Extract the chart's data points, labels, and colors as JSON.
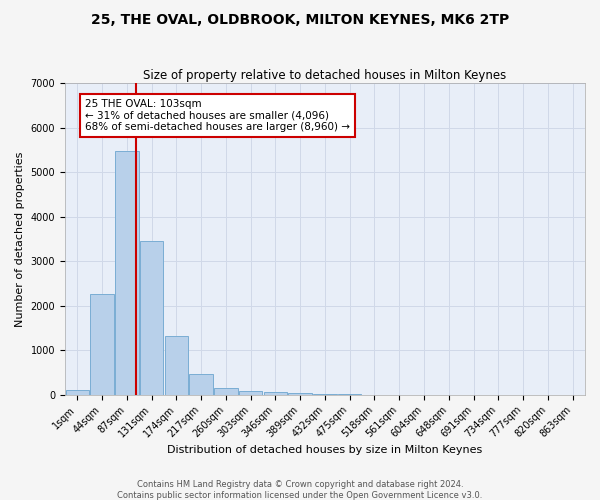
{
  "title1": "25, THE OVAL, OLDBROOK, MILTON KEYNES, MK6 2TP",
  "title2": "Size of property relative to detached houses in Milton Keynes",
  "xlabel": "Distribution of detached houses by size in Milton Keynes",
  "ylabel": "Number of detached properties",
  "bin_labels": [
    "1sqm",
    "44sqm",
    "87sqm",
    "131sqm",
    "174sqm",
    "217sqm",
    "260sqm",
    "303sqm",
    "346sqm",
    "389sqm",
    "432sqm",
    "475sqm",
    "518sqm",
    "561sqm",
    "604sqm",
    "648sqm",
    "691sqm",
    "734sqm",
    "777sqm",
    "820sqm",
    "863sqm"
  ],
  "bar_heights": [
    100,
    2270,
    5480,
    3450,
    1320,
    470,
    160,
    90,
    65,
    40,
    15,
    5,
    2,
    1,
    0,
    0,
    0,
    0,
    0,
    0,
    0
  ],
  "num_bins": 21,
  "bar_color": "#b8d0ea",
  "bar_edge_color": "#7aadd4",
  "property_line_x": 2,
  "property_line_color": "#cc0000",
  "annotation_text": "25 THE OVAL: 103sqm\n← 31% of detached houses are smaller (4,096)\n68% of semi-detached houses are larger (8,960) →",
  "annotation_box_color": "#ffffff",
  "annotation_box_edge_color": "#cc0000",
  "ylim": [
    0,
    7000
  ],
  "yticks": [
    0,
    1000,
    2000,
    3000,
    4000,
    5000,
    6000,
    7000
  ],
  "grid_color": "#d0d8e8",
  "bg_color": "#e8eef8",
  "fig_color": "#f5f5f5",
  "footer1": "Contains HM Land Registry data © Crown copyright and database right 2024.",
  "footer2": "Contains public sector information licensed under the Open Government Licence v3.0.",
  "title1_fontsize": 10,
  "title2_fontsize": 8.5,
  "ylabel_fontsize": 8,
  "xlabel_fontsize": 8,
  "tick_fontsize": 7,
  "annotation_fontsize": 7.5,
  "footer_fontsize": 6
}
